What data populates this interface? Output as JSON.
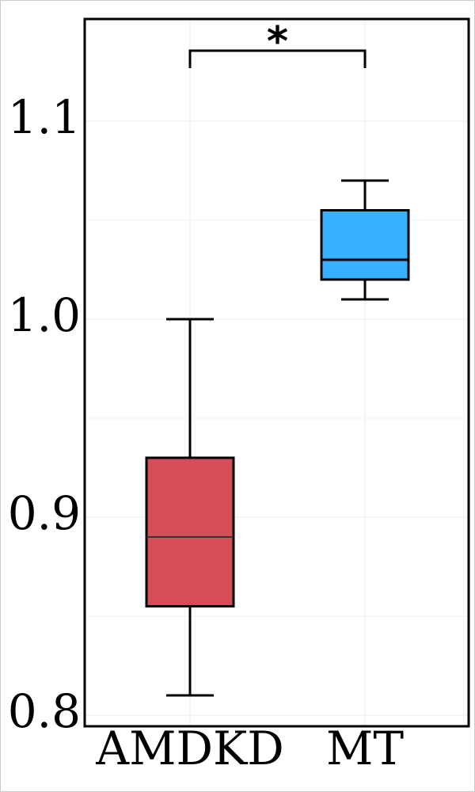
{
  "chart_data": {
    "type": "box",
    "categories": [
      "AMDKD",
      "MT"
    ],
    "boxes": [
      {
        "whislo": 0.81,
        "q1": 0.855,
        "med": 0.89,
        "q3": 0.93,
        "whishi": 1.0,
        "color": "#d44d58"
      },
      {
        "whislo": 1.01,
        "q1": 1.02,
        "med": 1.03,
        "q3": 1.055,
        "whishi": 1.07,
        "color": "#36b0ff"
      }
    ],
    "ylim": [
      0.7944,
      1.1516
    ],
    "yticks": [
      0.8,
      0.9,
      {
        "value": 1,
        "label": "1.0"
      },
      1.1
    ],
    "minor_yticks": [
      0.85,
      0.95,
      1.05
    ],
    "grid": true,
    "significance": {
      "label": "*",
      "between": [
        0,
        1
      ]
    }
  }
}
